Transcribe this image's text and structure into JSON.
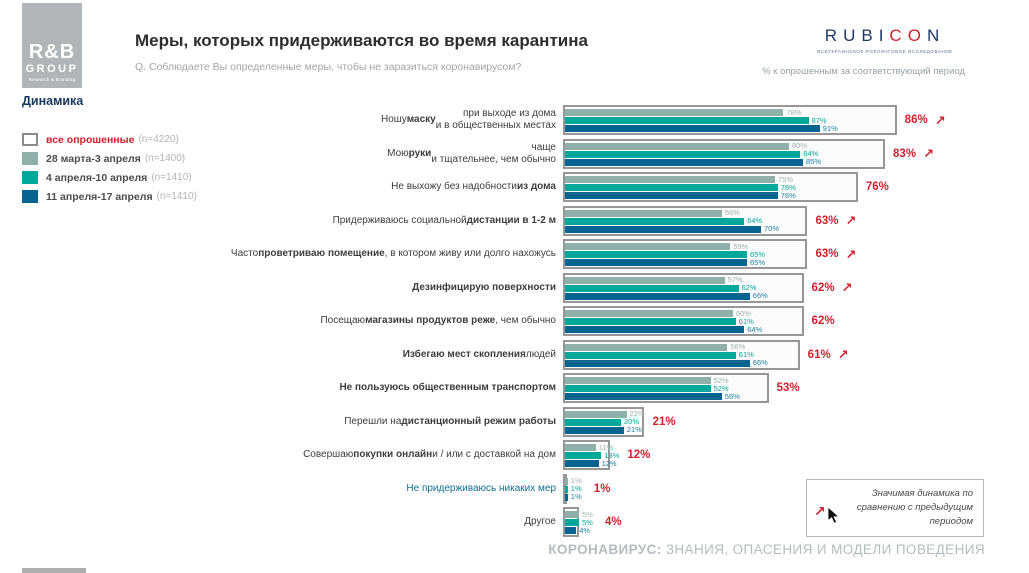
{
  "header": {
    "logo": {
      "l1": "R&B",
      "l2": "GROUP",
      "l3": "Research & Branding"
    },
    "title": "Меры, которых придерживаются во время карантина",
    "subtitle": "Q. Соблюдаете Вы определенные меры, чтобы не заразиться  коронавирусом?",
    "brand": {
      "text": "RUBICON",
      "red_letters": "CO",
      "navy": "#1f3864",
      "red": "#c9242b",
      "tagline": "ВСЕУКРАИНСКОЕ РОЛЛИНГОВОЕ ИССЛЕДОВАНИЕ"
    },
    "note": "% к опрошенным за соответствующий период"
  },
  "legend": {
    "title": "Динамика",
    "items": [
      {
        "label": "все опрошенные",
        "n": "(n=4220)",
        "color": "#ffffff",
        "border": "#8c8c8c",
        "label_color": "#d21f2f"
      },
      {
        "label": "28 марта-3 апреля",
        "n": "(n=1400)",
        "color": "#8fafa9"
      },
      {
        "label": "4 апреля-10 апреля",
        "n": "(n=1410)",
        "color": "#00a79b"
      },
      {
        "label": "11 апреля-17 апреля",
        "n": "(n=1410)",
        "color": "#076390"
      }
    ]
  },
  "chart_data": {
    "type": "bar",
    "orientation": "horizontal",
    "value_unit": "%",
    "series_names": [
      "все опрошенные (n=4220)",
      "28 марта-3 апреля (n=1400)",
      "4 апреля-10 апреля (n=1410)",
      "11 апреля-17 апреля (n=1410)"
    ],
    "bar_colors": [
      "#8fafa9",
      "#00a79b",
      "#076390"
    ],
    "value_label_colors": [
      "#9fb3ae",
      "#00a79b",
      "#2180a6"
    ],
    "total_color": "#d21f2f",
    "rows": [
      {
        "label": "Ношу **маску** при выходе из дома\nи в общественных местах",
        "total": 86,
        "values": [
          78,
          87,
          91
        ],
        "arrow": true
      },
      {
        "label": "Мою **руки** чаще\nи тщательнее, чем обычно",
        "total": 83,
        "values": [
          80,
          84,
          85
        ],
        "arrow": true
      },
      {
        "label": "Не выхожу без надобности **из дома**",
        "total": 76,
        "values": [
          75,
          76,
          76
        ],
        "arrow": false
      },
      {
        "label": "Придерживаюсь социальной **дистанции в 1-2 м**",
        "total": 63,
        "values": [
          56,
          64,
          70
        ],
        "arrow": true
      },
      {
        "label": "Часто **проветриваю помещение**, в котором живу или долго нахожусь",
        "total": 63,
        "values": [
          59,
          65,
          65
        ],
        "arrow": true
      },
      {
        "label": "**Дезинфицирую поверхности**",
        "total": 62,
        "values": [
          57,
          62,
          66
        ],
        "arrow": true
      },
      {
        "label": "Посещаю **магазины продуктов реже**, чем обычно",
        "total": 62,
        "values": [
          60,
          61,
          64
        ],
        "arrow": false
      },
      {
        "label": "**Избегаю мест скопления** людей",
        "total": 61,
        "values": [
          58,
          61,
          66
        ],
        "arrow": true
      },
      {
        "label": "**Не пользуюсь общественным транспортом**",
        "total": 53,
        "values": [
          52,
          52,
          56
        ],
        "arrow": false
      },
      {
        "label": "Перешли на **дистанционный режим работы**",
        "total": 21,
        "values": [
          22,
          20,
          21
        ],
        "arrow": false
      },
      {
        "label": "Совершаю **покупки онлайн** и / или с доставкой на дом",
        "total": 12,
        "values": [
          11,
          13,
          12
        ],
        "arrow": false
      },
      {
        "label": "Не придерживаюсь никаких мер",
        "total": 1,
        "values": [
          1,
          1,
          1
        ],
        "arrow": false,
        "label_color": "#136f93"
      },
      {
        "label": "Другое",
        "total": 4,
        "values": [
          5,
          5,
          4
        ],
        "arrow": false
      }
    ]
  },
  "callout": {
    "text": "Значимая динамика по сравнению с предыдущим периодом",
    "arrow_color": "#d21f2f"
  },
  "footer": {
    "bold": "КОРОНАВИРУС:",
    "rest": " ЗНАНИЯ, ОПАСЕНИЯ И МОДЕЛИ ПОВЕДЕНИЯ"
  }
}
